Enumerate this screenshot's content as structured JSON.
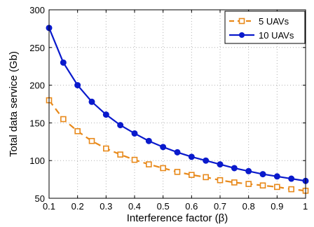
{
  "chart_data": {
    "type": "line",
    "xlabel": "Interference factor (β)",
    "ylabel": "Total data service (Gb)",
    "xlim": [
      0.1,
      1.0
    ],
    "ylim": [
      50,
      300
    ],
    "x_ticks": [
      "0.1",
      "0.2",
      "0.3",
      "0.4",
      "0.5",
      "0.6",
      "0.7",
      "0.8",
      "0.9",
      "1"
    ],
    "y_ticks": [
      "50",
      "100",
      "150",
      "200",
      "250",
      "300"
    ],
    "grid": true,
    "legend_position": "top-right",
    "x": [
      0.1,
      0.15,
      0.2,
      0.25,
      0.3,
      0.35,
      0.4,
      0.45,
      0.5,
      0.55,
      0.6,
      0.65,
      0.7,
      0.75,
      0.8,
      0.85,
      0.9,
      0.95,
      1.0
    ],
    "series": [
      {
        "name": "5 UAVs",
        "color": "#e8891a",
        "line_style": "dashed",
        "marker": "square-open",
        "values": [
          180,
          155,
          139,
          126,
          116,
          108,
          101,
          95,
          90,
          85,
          81,
          78,
          74,
          71,
          69,
          67,
          65,
          62,
          60
        ]
      },
      {
        "name": "10 UAVs",
        "color": "#0a1acc",
        "line_style": "solid",
        "marker": "circle-filled",
        "values": [
          276,
          230,
          200,
          178,
          161,
          147,
          136,
          126,
          118,
          111,
          105,
          100,
          95,
          90,
          86,
          82,
          79,
          76,
          73
        ]
      }
    ]
  }
}
